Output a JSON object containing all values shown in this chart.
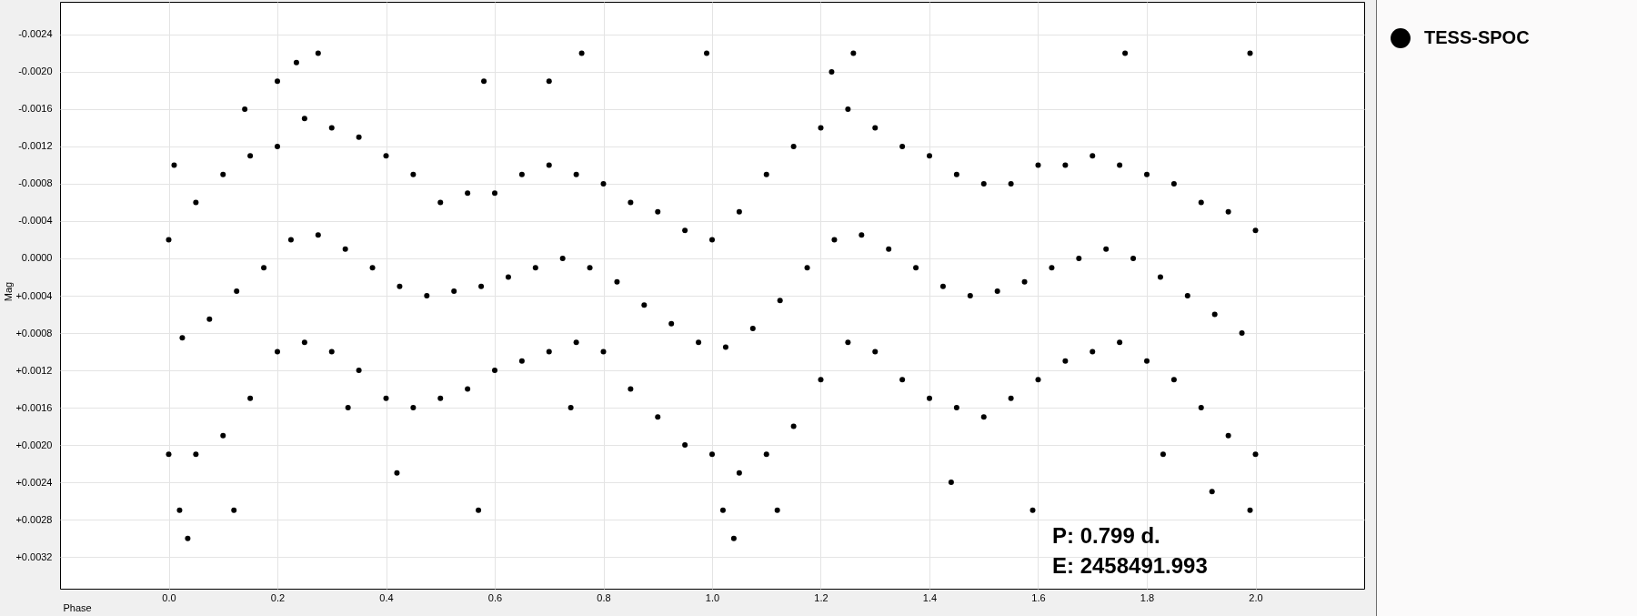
{
  "chart_data": {
    "type": "scatter",
    "xlabel": "Phase",
    "ylabel": "Mag",
    "xlim": [
      -0.2,
      2.2
    ],
    "ylim": [
      0.00354,
      -0.00275
    ],
    "xticks": [
      {
        "value": 0,
        "label": "0.0"
      },
      0.2,
      0.4,
      0.6,
      0.8,
      {
        "value": 1,
        "label": "1.0"
      },
      1.2,
      1.4,
      1.6,
      1.8,
      {
        "value": 2,
        "label": "2.0"
      }
    ],
    "yticks": [
      -0.0024,
      {
        "value": -0.002,
        "label": "-0.0020"
      },
      -0.0016,
      -0.0012,
      -0.0008,
      -0.0004,
      {
        "value": 0,
        "label": "0.0000"
      },
      {
        "value": 0.0004,
        "label": "+0.0004"
      },
      {
        "value": 0.0008,
        "label": "+0.0008"
      },
      {
        "value": 0.0012,
        "label": "+0.0012"
      },
      {
        "value": 0.0016,
        "label": "+0.0016"
      },
      {
        "value": 0.002,
        "label": "+0.0020"
      },
      {
        "value": 0.0024,
        "label": "+0.0024"
      },
      {
        "value": 0.0028,
        "label": "+0.0028"
      },
      {
        "value": 0.0032,
        "label": "+0.0032"
      }
    ],
    "grid": true,
    "legend": "top right",
    "marker": "circle",
    "annotations": [
      "P: 0.799 d.",
      "E: 2458491.993"
    ],
    "series": [
      {
        "name": "TESS-SPOC",
        "color": "#000000",
        "x": [
          0,
          0.05,
          0.1,
          0.15,
          0.2,
          0.25,
          0.3,
          0.35,
          0.4,
          0.45,
          0.5,
          0.55,
          0.6,
          0.65,
          0.7,
          0.75,
          0.8,
          0.85,
          0.9,
          0.95,
          1,
          1.05,
          1.1,
          1.15,
          1.2,
          1.25,
          1.3,
          1.35,
          1.4,
          1.45,
          1.5,
          1.55,
          1.6,
          1.65,
          1.7,
          1.75,
          1.8,
          1.85,
          1.9,
          1.95,
          2,
          0,
          0.05,
          0.1,
          0.15,
          0.2,
          0.25,
          0.3,
          0.35,
          0.4,
          0.45,
          0.5,
          0.55,
          0.6,
          0.65,
          0.7,
          0.75,
          0.8,
          0.85,
          0.9,
          0.95,
          1,
          1.05,
          1.1,
          1.15,
          1.2,
          1.25,
          1.3,
          1.35,
          1.4,
          1.45,
          1.5,
          1.55,
          1.6,
          1.65,
          1.7,
          1.75,
          1.8,
          1.85,
          1.9,
          1.95,
          2,
          0.025,
          0.075,
          0.125,
          0.175,
          0.225,
          0.275,
          0.325,
          0.375,
          0.425,
          0.475,
          0.525,
          0.575,
          0.625,
          0.675,
          0.725,
          0.775,
          0.825,
          0.875,
          0.925,
          0.975,
          1.025,
          1.075,
          1.125,
          1.175,
          1.225,
          1.275,
          1.325,
          1.375,
          1.425,
          1.475,
          1.525,
          1.575,
          1.625,
          1.675,
          1.725,
          1.775,
          1.825,
          1.875,
          1.925,
          1.975,
          0.01,
          0.035,
          0.02,
          0.12,
          0.14,
          0.2,
          0.275,
          0.235,
          0.33,
          0.42,
          0.57,
          0.58,
          0.76,
          0.74,
          0.99,
          1.04,
          1.02,
          1.12,
          1.26,
          1.22,
          1.44,
          1.59,
          1.76,
          1.83,
          1.99,
          1.99,
          1.92,
          0.7
        ],
        "values": [
          -0.0002,
          -0.0006,
          -0.0009,
          -0.0011,
          -0.0012,
          -0.0015,
          -0.0014,
          -0.0013,
          -0.0011,
          -0.0009,
          -0.0006,
          -0.0007,
          -0.0007,
          -0.0009,
          -0.001,
          -0.0009,
          -0.0008,
          -0.0006,
          -0.0005,
          -0.0003,
          -0.0002,
          -0.0005,
          -0.0009,
          -0.0012,
          -0.0014,
          -0.0016,
          -0.0014,
          -0.0012,
          -0.0011,
          -0.0009,
          -0.0008,
          -0.0008,
          -0.001,
          -0.001,
          -0.0011,
          -0.001,
          -0.0009,
          -0.0008,
          -0.0006,
          -0.0005,
          -0.0003,
          0.0021,
          0.0021,
          0.0019,
          0.0015,
          0.001,
          0.0009,
          0.001,
          0.0012,
          0.0015,
          0.0016,
          0.0015,
          0.0014,
          0.0012,
          0.0011,
          0.001,
          0.0009,
          0.001,
          0.0014,
          0.0017,
          0.002,
          0.0021,
          0.0023,
          0.0021,
          0.0018,
          0.0013,
          0.0009,
          0.001,
          0.0013,
          0.0015,
          0.0016,
          0.0017,
          0.0015,
          0.0013,
          0.0011,
          0.001,
          0.0009,
          0.0011,
          0.0013,
          0.0016,
          0.0019,
          0.0021,
          0.00085,
          0.00065,
          0.00035,
          0.0001,
          -0.0002,
          -0.00025,
          -0.0001,
          0.0001,
          0.0003,
          0.0004,
          0.00035,
          0.0003,
          0.0002,
          0.0001,
          0,
          0.0001,
          0.00025,
          0.0005,
          0.0007,
          0.0009,
          0.00095,
          0.00075,
          0.00045,
          0.0001,
          -0.0002,
          -0.00025,
          -0.0001,
          0.0001,
          0.0003,
          0.0004,
          0.00035,
          0.00025,
          0.0001,
          0,
          -0.0001,
          0,
          0.0002,
          0.0004,
          0.0006,
          0.0008,
          -0.001,
          0.003,
          0.0027,
          0.0027,
          -0.0016,
          -0.0019,
          -0.0022,
          -0.0021,
          0.0016,
          0.0023,
          0.0027,
          -0.0019,
          -0.0022,
          0.0016,
          -0.0022,
          0.003,
          0.0027,
          0.0027,
          -0.0022,
          -0.002,
          0.0024,
          0.0027,
          -0.0022,
          0.0021,
          -0.0022,
          0.0027,
          0.0025,
          -0.0019
        ]
      }
    ]
  }
}
